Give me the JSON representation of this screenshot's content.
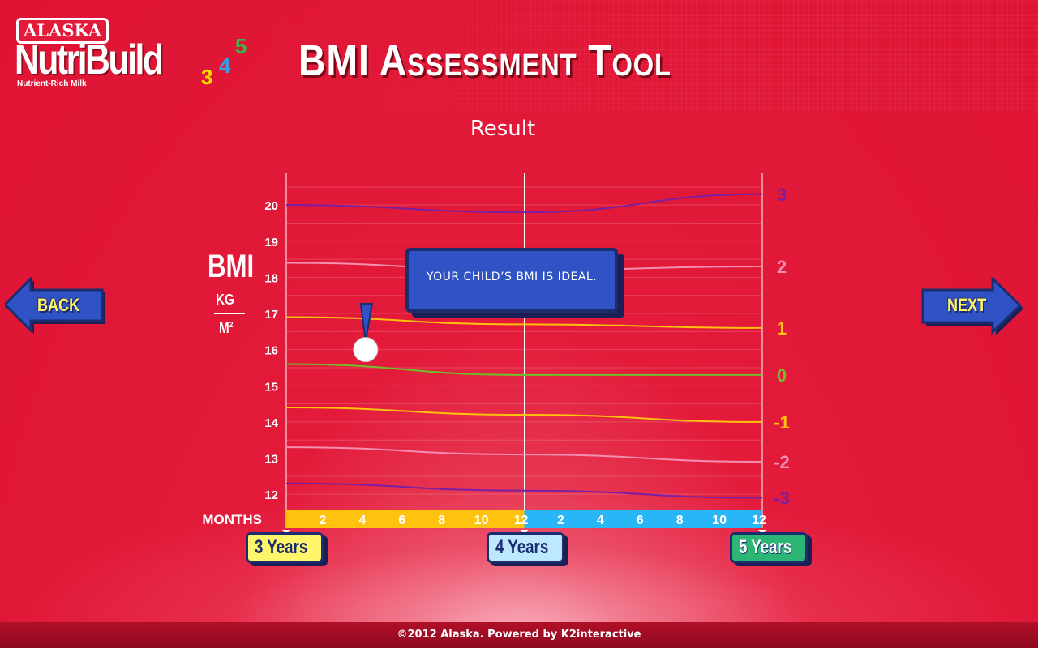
{
  "header": {
    "brand_badge": "ALASKA",
    "brand_name": "NutriBuild",
    "brand_num_3": "3",
    "brand_num_4": "4",
    "brand_num_5": "5",
    "tagline": "Nutrient-Rich Milk",
    "title": "BMI Assessment Tool"
  },
  "result": {
    "title": "Result",
    "message": "YOUR CHILD’S BMI IS IDEAL."
  },
  "nav": {
    "back_label": "BACK",
    "next_label": "NEXT"
  },
  "axis": {
    "bmi_label": "BMI",
    "kg_label": "KG",
    "m_label": "M",
    "m_sup": "2",
    "months_label": "MONTHS"
  },
  "years": [
    "3 Years",
    "4 Years",
    "5 Years"
  ],
  "footer": {
    "text": "©2012 Alaska. Powered by K2interactive"
  },
  "colors": {
    "background": "#e31a3a",
    "purple": "#7a1fa2",
    "pink": "#f48fb1",
    "yellow": "#ffc20e",
    "green": "#6fbf2b",
    "months_yellow": "#ffc20e",
    "months_blue": "#29b6f6",
    "tooltip_blue": "#2f52c4"
  },
  "chart_data": {
    "type": "line",
    "xlabel": "MONTHS",
    "ylabel": "BMI",
    "x_month_ticks": [
      "2",
      "4",
      "6",
      "8",
      "10",
      "12",
      "2",
      "4",
      "6",
      "8",
      "10",
      "12"
    ],
    "x_range_months": [
      36,
      60
    ],
    "ylim": [
      11.6,
      20.9
    ],
    "y_ticks": [
      12,
      13,
      14,
      15,
      16,
      17,
      18,
      19,
      20
    ],
    "x_groups": [
      "3 Years",
      "4 Years",
      "5 Years"
    ],
    "series": [
      {
        "name": "3",
        "color": "#7a1fa2",
        "x": [
          36,
          48,
          60
        ],
        "values": [
          20.0,
          19.8,
          20.3
        ]
      },
      {
        "name": "2",
        "color": "#f48fb1",
        "x": [
          36,
          48,
          60
        ],
        "values": [
          18.4,
          18.2,
          18.3
        ]
      },
      {
        "name": "1",
        "color": "#ffc20e",
        "x": [
          36,
          48,
          60
        ],
        "values": [
          16.9,
          16.7,
          16.6
        ]
      },
      {
        "name": "0",
        "color": "#6fbf2b",
        "x": [
          36,
          48,
          60
        ],
        "values": [
          15.6,
          15.3,
          15.3
        ]
      },
      {
        "name": "-1",
        "color": "#ffc20e",
        "x": [
          36,
          48,
          60
        ],
        "values": [
          14.4,
          14.2,
          14.0
        ]
      },
      {
        "name": "-2",
        "color": "#f48fb1",
        "x": [
          36,
          48,
          60
        ],
        "values": [
          13.3,
          13.1,
          12.9
        ]
      },
      {
        "name": "-3",
        "color": "#7a1fa2",
        "x": [
          36,
          48,
          60
        ],
        "values": [
          12.3,
          12.1,
          11.9
        ]
      }
    ],
    "child_point": {
      "x": 40,
      "y": 16.0
    }
  }
}
